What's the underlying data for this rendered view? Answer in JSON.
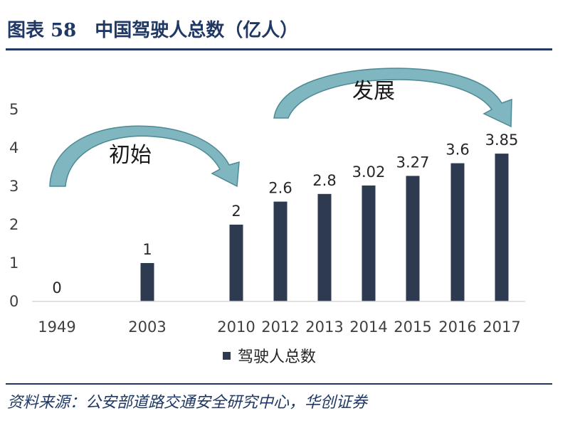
{
  "header": {
    "title": "图表 58　中国驾驶人总数（亿人）"
  },
  "footer": {
    "source": "资料来源：公安部道路交通安全研究中心，华创证券"
  },
  "annotations": {
    "left": "初始",
    "right": "发展"
  },
  "colors": {
    "bar": "#2e3a50",
    "accent": "#1f3864",
    "arrow_fill": "#7fb6bf",
    "arrow_edge": "#4d8a93"
  },
  "chart_data": {
    "type": "bar",
    "categories": [
      "1949",
      "2003",
      "2010",
      "2012",
      "2013",
      "2014",
      "2015",
      "2016",
      "2017"
    ],
    "series": [
      {
        "name": "驾驶人总数",
        "values": [
          0,
          1,
          2,
          2.6,
          2.8,
          3.02,
          3.27,
          3.6,
          3.85
        ]
      }
    ],
    "value_labels": [
      "0",
      "1",
      "2",
      "2.6",
      "2.8",
      "3.02",
      "3.27",
      "3.6",
      "3.85"
    ],
    "y_ticks": [
      "0",
      "1",
      "2",
      "3",
      "4",
      "5"
    ],
    "ylim": [
      0,
      5
    ],
    "legend_position": "bottom",
    "grid": false
  }
}
